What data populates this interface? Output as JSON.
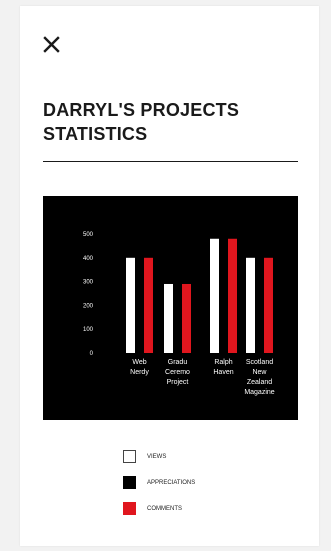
{
  "header": {
    "close_icon": "close-icon",
    "title": "DARRYL'S PROJECTS\nSTATISTICS"
  },
  "colors": {
    "views": "#ffffff",
    "appreciations": "#000000",
    "comments": "#e0161e",
    "chart_background": "#000000"
  },
  "chart_data": {
    "type": "bar",
    "categories": [
      "Web Nerdy",
      "Graduation Ceremony Project",
      "Ralph Haven",
      "Scotland New Zealand Magazine"
    ],
    "category_labels": [
      [
        "Web",
        "Nerdy"
      ],
      [
        "Gradu",
        "Ceremo",
        "Project"
      ],
      [
        "Ralph",
        "Haven"
      ],
      [
        "Scotland",
        "New",
        "Zealand",
        "Magazine"
      ]
    ],
    "series": [
      {
        "name": "VIEWS",
        "color": "#ffffff",
        "values": [
          400,
          290,
          480,
          400
        ]
      },
      {
        "name": "APPRECIATIONS",
        "color": "#000000",
        "values": [
          400,
          290,
          480,
          400
        ]
      },
      {
        "name": "COMMENTS",
        "color": "#e0161e",
        "values": [
          400,
          290,
          480,
          400
        ]
      }
    ],
    "y_ticks": [
      "500",
      "400",
      "300",
      "200",
      "100",
      "0"
    ],
    "ylim": [
      0,
      500
    ],
    "xlabel": "",
    "ylabel": "",
    "grid": false
  },
  "legend": {
    "items": [
      {
        "label": "VIEWS"
      },
      {
        "label": "APPRECIATIONS"
      },
      {
        "label": "COMMENTS"
      }
    ]
  }
}
